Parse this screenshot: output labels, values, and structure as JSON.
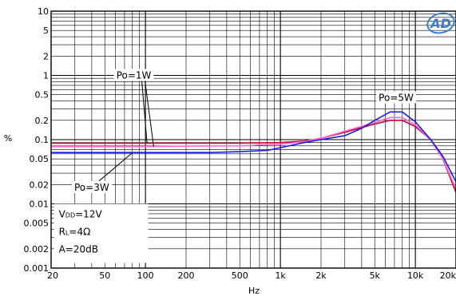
{
  "chart_data": {
    "type": "line",
    "title": "",
    "xlabel": "Hz",
    "ylabel": "%",
    "xscale": "log",
    "yscale": "log",
    "xlim": [
      20,
      20000
    ],
    "ylim": [
      0.001,
      10
    ],
    "grid": true,
    "x_ticks": [
      {
        "v": 20,
        "label": "20"
      },
      {
        "v": 50,
        "label": "50"
      },
      {
        "v": 100,
        "label": "100"
      },
      {
        "v": 200,
        "label": "200"
      },
      {
        "v": 500,
        "label": "500"
      },
      {
        "v": 1000,
        "label": "1k"
      },
      {
        "v": 2000,
        "label": "2k"
      },
      {
        "v": 5000,
        "label": "5k"
      },
      {
        "v": 10000,
        "label": "10k"
      },
      {
        "v": 20000,
        "label": "20k"
      }
    ],
    "y_ticks": [
      {
        "v": 10,
        "label": "10"
      },
      {
        "v": 5,
        "label": "5"
      },
      {
        "v": 2,
        "label": "2"
      },
      {
        "v": 1,
        "label": "1"
      },
      {
        "v": 0.5,
        "label": "0.5"
      },
      {
        "v": 0.2,
        "label": "0.2"
      },
      {
        "v": 0.1,
        "label": "0.1"
      },
      {
        "v": 0.05,
        "label": "0.05"
      },
      {
        "v": 0.02,
        "label": "0.02"
      },
      {
        "v": 0.01,
        "label": "0.01"
      },
      {
        "v": 0.005,
        "label": "0.005"
      },
      {
        "v": 0.002,
        "label": "0.002"
      },
      {
        "v": 0.001,
        "label": "0.001"
      }
    ],
    "series": [
      {
        "color": "#cc0033",
        "x": [
          20,
          100,
          200,
          500,
          1000,
          1500,
          2000,
          3000,
          5000,
          6500,
          8000,
          10000,
          13000,
          16000,
          20000
        ],
        "y": [
          0.088,
          0.088,
          0.088,
          0.088,
          0.09,
          0.095,
          0.105,
          0.13,
          0.175,
          0.2,
          0.2,
          0.16,
          0.1,
          0.05,
          0.015
        ]
      },
      {
        "color": "#ff66cc",
        "x": [
          20,
          100,
          200,
          500,
          1000,
          1500,
          2000,
          3000,
          5000,
          6500,
          8000,
          10000,
          13000,
          16000,
          20000
        ],
        "y": [
          0.078,
          0.078,
          0.079,
          0.08,
          0.085,
          0.093,
          0.105,
          0.135,
          0.185,
          0.22,
          0.22,
          0.17,
          0.1,
          0.05,
          0.017
        ]
      },
      {
        "color": "#1a1aee",
        "x": [
          20,
          100,
          200,
          300,
          500,
          800,
          1000,
          1500,
          2000,
          3000,
          4000,
          5000,
          6500,
          8000,
          10000,
          13000,
          16000,
          20000
        ],
        "y": [
          0.063,
          0.063,
          0.063,
          0.063,
          0.065,
          0.068,
          0.075,
          0.09,
          0.1,
          0.115,
          0.15,
          0.2,
          0.27,
          0.27,
          0.19,
          0.1,
          0.055,
          0.022
        ]
      }
    ],
    "annotations": [
      {
        "text": "Po=1W",
        "x": 82,
        "y": 1.0
      },
      {
        "text": "Po=5W",
        "x": 7200,
        "y": 0.45
      },
      {
        "text": "Po=3W",
        "x": 40,
        "y": 0.018
      }
    ],
    "conditions": [
      {
        "main": "V",
        "sub": "DD",
        "rest": "=12V"
      },
      {
        "main": "R",
        "sub": "L",
        "rest": "=4Ω"
      },
      {
        "main": "A=20dB",
        "sub": "",
        "rest": ""
      }
    ],
    "logo": "AD"
  }
}
